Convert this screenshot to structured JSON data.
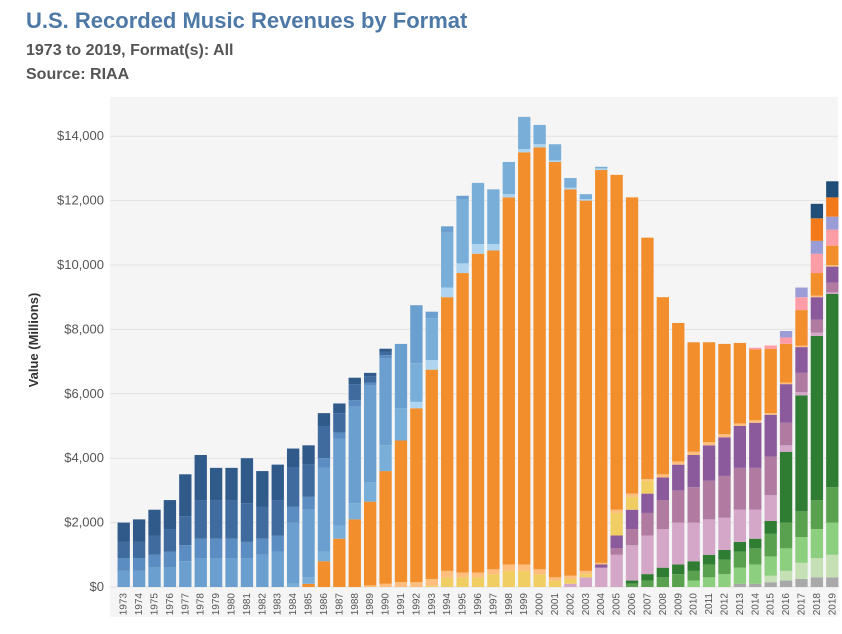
{
  "header": {
    "title": "U.S. Recorded Music Revenues by Format",
    "subtitle": "1973 to 2019, Format(s): All",
    "source": "Source: RIAA"
  },
  "chart_data": {
    "type": "bar",
    "stacked": true,
    "ylabel": "Value (Millions)",
    "ylim": [
      0,
      15000
    ],
    "yticks": [
      0,
      2000,
      4000,
      6000,
      8000,
      10000,
      12000,
      14000
    ],
    "ytick_labels": [
      "$0",
      "$2,000",
      "$4,000",
      "$6,000",
      "$8,000",
      "$10,000",
      "$12,000",
      "$14,000"
    ],
    "grid": true,
    "categories": [
      "1973",
      "1974",
      "1975",
      "1976",
      "1977",
      "1978",
      "1979",
      "1980",
      "1981",
      "1982",
      "1983",
      "1984",
      "1985",
      "1986",
      "1987",
      "1988",
      "1989",
      "1990",
      "1991",
      "1992",
      "1993",
      "1994",
      "1995",
      "1996",
      "1997",
      "1998",
      "1999",
      "2000",
      "2001",
      "2002",
      "2003",
      "2004",
      "2005",
      "2006",
      "2007",
      "2008",
      "2009",
      "2010",
      "2011",
      "2012",
      "2013",
      "2014",
      "2015",
      "2016",
      "2017",
      "2018",
      "2019"
    ],
    "series": [
      {
        "color": "#a9a9a9",
        "values": [
          0,
          0,
          0,
          0,
          0,
          0,
          0,
          0,
          0,
          0,
          0,
          0,
          0,
          0,
          0,
          0,
          0,
          0,
          0,
          0,
          0,
          0,
          0,
          0,
          0,
          0,
          0,
          0,
          0,
          0,
          0,
          0,
          0,
          0,
          0,
          0,
          0,
          0,
          0,
          0,
          100,
          100,
          150,
          200,
          250,
          300,
          300
        ]
      },
      {
        "color": "#c5e0b4",
        "values": [
          0,
          0,
          0,
          0,
          0,
          0,
          0,
          0,
          0,
          0,
          0,
          0,
          0,
          0,
          0,
          0,
          0,
          0,
          0,
          0,
          0,
          0,
          0,
          0,
          0,
          0,
          0,
          0,
          0,
          0,
          0,
          0,
          0,
          0,
          0,
          0,
          0,
          0,
          0,
          0,
          0,
          0,
          200,
          300,
          500,
          600,
          700
        ]
      },
      {
        "color": "#8ccf7e",
        "values": [
          0,
          0,
          0,
          0,
          0,
          0,
          0,
          0,
          0,
          0,
          0,
          0,
          0,
          0,
          0,
          0,
          0,
          0,
          0,
          0,
          0,
          0,
          0,
          0,
          0,
          0,
          0,
          0,
          0,
          0,
          0,
          0,
          0,
          0,
          0,
          0,
          0,
          200,
          300,
          400,
          500,
          600,
          600,
          700,
          800,
          900,
          1000
        ]
      },
      {
        "color": "#59a14f",
        "values": [
          0,
          0,
          0,
          0,
          0,
          0,
          0,
          0,
          0,
          0,
          0,
          0,
          0,
          0,
          0,
          0,
          0,
          0,
          0,
          0,
          0,
          0,
          0,
          0,
          0,
          0,
          0,
          0,
          0,
          0,
          0,
          0,
          0,
          100,
          200,
          300,
          400,
          300,
          400,
          450,
          500,
          500,
          700,
          800,
          800,
          900,
          1100
        ]
      },
      {
        "color": "#2e7d32",
        "values": [
          0,
          0,
          0,
          0,
          0,
          0,
          0,
          0,
          0,
          0,
          0,
          0,
          0,
          0,
          0,
          0,
          0,
          0,
          0,
          0,
          0,
          0,
          0,
          0,
          0,
          0,
          0,
          0,
          0,
          0,
          0,
          0,
          0,
          100,
          200,
          300,
          300,
          300,
          300,
          300,
          300,
          300,
          400,
          2200,
          3600,
          5100,
          6000
        ]
      },
      {
        "color": "#d4a6c8",
        "values": [
          0,
          0,
          0,
          0,
          0,
          0,
          0,
          0,
          0,
          0,
          0,
          0,
          0,
          0,
          0,
          0,
          0,
          0,
          0,
          0,
          0,
          0,
          0,
          0,
          0,
          0,
          0,
          0,
          0,
          100,
          300,
          600,
          1000,
          1100,
          1200,
          1200,
          1300,
          1200,
          1100,
          1000,
          1000,
          900,
          800,
          200,
          100,
          100,
          50
        ]
      },
      {
        "color": "#b07aa1",
        "values": [
          0,
          0,
          0,
          0,
          0,
          0,
          0,
          0,
          0,
          0,
          0,
          0,
          0,
          0,
          0,
          0,
          0,
          0,
          0,
          0,
          0,
          0,
          0,
          0,
          0,
          0,
          0,
          0,
          0,
          0,
          0,
          0,
          200,
          500,
          700,
          900,
          1000,
          1100,
          1200,
          1300,
          1300,
          1300,
          1200,
          700,
          600,
          400,
          300
        ]
      },
      {
        "color": "#8a5a9c",
        "values": [
          0,
          0,
          0,
          0,
          0,
          0,
          0,
          0,
          0,
          0,
          0,
          0,
          0,
          0,
          0,
          0,
          0,
          0,
          0,
          0,
          0,
          0,
          0,
          0,
          0,
          0,
          0,
          0,
          0,
          0,
          0,
          100,
          400,
          600,
          600,
          700,
          800,
          1000,
          1100,
          1200,
          1300,
          1400,
          1300,
          1200,
          800,
          700,
          500
        ]
      },
      {
        "color": "#f1ce63",
        "values": [
          0,
          0,
          0,
          0,
          0,
          0,
          0,
          0,
          0,
          0,
          0,
          0,
          0,
          0,
          0,
          0,
          0,
          0,
          0,
          0,
          50,
          300,
          300,
          300,
          400,
          500,
          500,
          400,
          200,
          150,
          100,
          0,
          700,
          400,
          400,
          0,
          0,
          0,
          0,
          0,
          0,
          0,
          0,
          0,
          0,
          0,
          0
        ]
      },
      {
        "color": "#ffbe7d",
        "values": [
          0,
          0,
          0,
          0,
          0,
          0,
          0,
          0,
          0,
          0,
          0,
          0,
          0,
          0,
          0,
          0,
          50,
          100,
          150,
          150,
          200,
          200,
          150,
          150,
          150,
          200,
          200,
          150,
          100,
          100,
          100,
          50,
          100,
          100,
          50,
          100,
          100,
          100,
          100,
          100,
          80,
          80,
          50,
          50,
          50,
          50,
          50
        ]
      },
      {
        "color": "#f28e2b",
        "values": [
          0,
          0,
          0,
          0,
          0,
          0,
          0,
          0,
          0,
          0,
          0,
          0,
          100,
          800,
          1500,
          2100,
          2600,
          3500,
          4400,
          5400,
          6500,
          8500,
          9300,
          9900,
          9900,
          11400,
          12800,
          13100,
          12900,
          12000,
          11500,
          12200,
          10400,
          9200,
          7500,
          5500,
          4300,
          3400,
          3100,
          2800,
          2500,
          2200,
          2000,
          1200,
          1100,
          700,
          600
        ]
      },
      {
        "color": "#ff9da7",
        "values": [
          0,
          0,
          0,
          0,
          0,
          0,
          0,
          0,
          0,
          0,
          0,
          0,
          0,
          0,
          0,
          0,
          0,
          0,
          0,
          0,
          0,
          0,
          0,
          0,
          0,
          0,
          0,
          0,
          0,
          0,
          0,
          0,
          0,
          0,
          0,
          0,
          0,
          0,
          0,
          0,
          0,
          50,
          100,
          200,
          400,
          600,
          500
        ]
      },
      {
        "color": "#9b9bd6",
        "values": [
          0,
          0,
          0,
          0,
          0,
          0,
          0,
          0,
          0,
          0,
          0,
          0,
          0,
          0,
          0,
          0,
          0,
          0,
          0,
          0,
          0,
          0,
          0,
          0,
          0,
          0,
          0,
          0,
          0,
          0,
          0,
          0,
          0,
          0,
          0,
          0,
          0,
          0,
          0,
          0,
          0,
          0,
          0,
          200,
          300,
          400,
          400
        ]
      },
      {
        "color": "#f27a1b",
        "values": [
          0,
          0,
          0,
          0,
          0,
          0,
          0,
          0,
          0,
          0,
          0,
          0,
          0,
          0,
          0,
          0,
          0,
          0,
          0,
          0,
          0,
          0,
          0,
          0,
          0,
          0,
          0,
          0,
          0,
          0,
          0,
          0,
          0,
          0,
          0,
          0,
          0,
          0,
          0,
          0,
          0,
          0,
          0,
          0,
          0,
          700,
          600
        ]
      },
      {
        "color": "#aed4f0",
        "values": [
          0,
          0,
          0,
          0,
          0,
          0,
          0,
          0,
          0,
          0,
          0,
          0,
          0,
          0,
          0,
          0,
          0,
          0,
          0,
          200,
          300,
          300,
          300,
          300,
          200,
          100,
          100,
          100,
          50,
          50,
          50,
          50,
          0,
          0,
          0,
          0,
          0,
          0,
          0,
          0,
          0,
          0,
          0,
          0,
          0,
          0,
          0
        ]
      },
      {
        "color": "#78aed8",
        "values": [
          0,
          0,
          0,
          0,
          0,
          0,
          0,
          0,
          0,
          0,
          0,
          100,
          200,
          300,
          400,
          500,
          600,
          800,
          1000,
          1200,
          1300,
          1700,
          2000,
          1900,
          1700,
          1000,
          1000,
          600,
          500,
          300,
          150,
          50,
          0,
          0,
          0,
          0,
          0,
          0,
          0,
          0,
          0,
          0,
          0,
          0,
          0,
          0,
          0
        ]
      },
      {
        "color": "#6a9fcf",
        "values": [
          500,
          500,
          600,
          600,
          800,
          900,
          900,
          900,
          900,
          1000,
          1100,
          1900,
          2100,
          2600,
          2700,
          3000,
          3000,
          2700,
          2000,
          1800,
          200,
          200,
          100,
          0,
          0,
          0,
          0,
          0,
          0,
          0,
          0,
          0,
          0,
          0,
          0,
          0,
          0,
          0,
          0,
          0,
          0,
          0,
          0,
          0,
          0,
          0,
          0
        ]
      },
      {
        "color": "#5b8dc2",
        "values": [
          400,
          400,
          400,
          500,
          500,
          600,
          600,
          600,
          500,
          500,
          500,
          500,
          400,
          300,
          200,
          200,
          100,
          100,
          0,
          0,
          0,
          0,
          0,
          0,
          0,
          0,
          0,
          0,
          0,
          0,
          0,
          0,
          0,
          0,
          0,
          0,
          0,
          0,
          0,
          0,
          0,
          0,
          0,
          0,
          0,
          0,
          0
        ]
      },
      {
        "color": "#3f6b9f",
        "values": [
          500,
          500,
          600,
          700,
          900,
          1200,
          1200,
          1200,
          1200,
          1000,
          1100,
          1200,
          1000,
          1000,
          600,
          500,
          200,
          100,
          0,
          0,
          0,
          0,
          0,
          0,
          0,
          0,
          0,
          0,
          0,
          0,
          0,
          0,
          0,
          0,
          0,
          0,
          0,
          0,
          0,
          0,
          0,
          0,
          0,
          0,
          0,
          0,
          0
        ]
      },
      {
        "color": "#2f5a8a",
        "values": [
          600,
          700,
          800,
          900,
          1300,
          1400,
          1000,
          1000,
          1400,
          1100,
          1100,
          600,
          600,
          400,
          300,
          200,
          100,
          100,
          0,
          0,
          0,
          0,
          0,
          0,
          0,
          0,
          0,
          0,
          0,
          0,
          0,
          0,
          0,
          0,
          0,
          0,
          0,
          0,
          0,
          0,
          0,
          0,
          0,
          0,
          0,
          0,
          0
        ]
      },
      {
        "color": "#1f4e79",
        "values": [
          0,
          0,
          0,
          0,
          0,
          0,
          0,
          0,
          0,
          0,
          0,
          0,
          0,
          0,
          0,
          0,
          0,
          0,
          0,
          0,
          0,
          0,
          0,
          0,
          0,
          0,
          0,
          0,
          0,
          0,
          0,
          0,
          0,
          0,
          0,
          0,
          0,
          0,
          0,
          0,
          0,
          0,
          0,
          0,
          0,
          450,
          500
        ]
      }
    ]
  }
}
